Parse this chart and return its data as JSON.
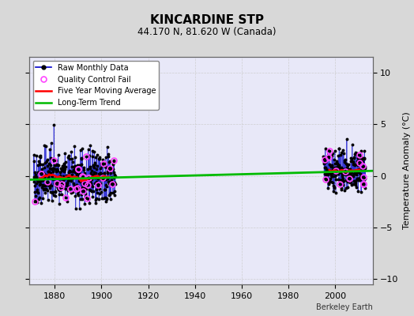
{
  "title": "KINCARDINE STP",
  "subtitle": "44.170 N, 81.620 W (Canada)",
  "ylabel": "Temperature Anomaly (°C)",
  "credit": "Berkeley Earth",
  "xlim": [
    1869,
    2016
  ],
  "ylim": [
    -10.5,
    11.5
  ],
  "yticks": [
    -10,
    -5,
    0,
    5,
    10
  ],
  "xticks": [
    1880,
    1900,
    1920,
    1940,
    1960,
    1980,
    2000
  ],
  "bg_color": "#d8d8d8",
  "plot_bg_color": "#e8e8f8",
  "seed_early": 42,
  "seed_late": 137,
  "early_years_start": 1871,
  "early_years_end": 1905,
  "late_years_start": 1995,
  "late_years_end": 2012,
  "early_mean": -0.15,
  "late_mean": 0.5,
  "early_spread": 2.8,
  "late_spread": 2.2,
  "trend_x": [
    1869,
    2016
  ],
  "trend_y": [
    -0.38,
    0.48
  ],
  "colors": {
    "raw_line": "#6666dd",
    "raw_line_dark": "#0000cc",
    "raw_dot": "#000000",
    "qc_fail": "#ff44ff",
    "moving_avg": "#ff0000",
    "trend": "#00bb00",
    "grid": "#cccccc"
  },
  "figsize": [
    5.24,
    4.0
  ],
  "dpi": 100
}
